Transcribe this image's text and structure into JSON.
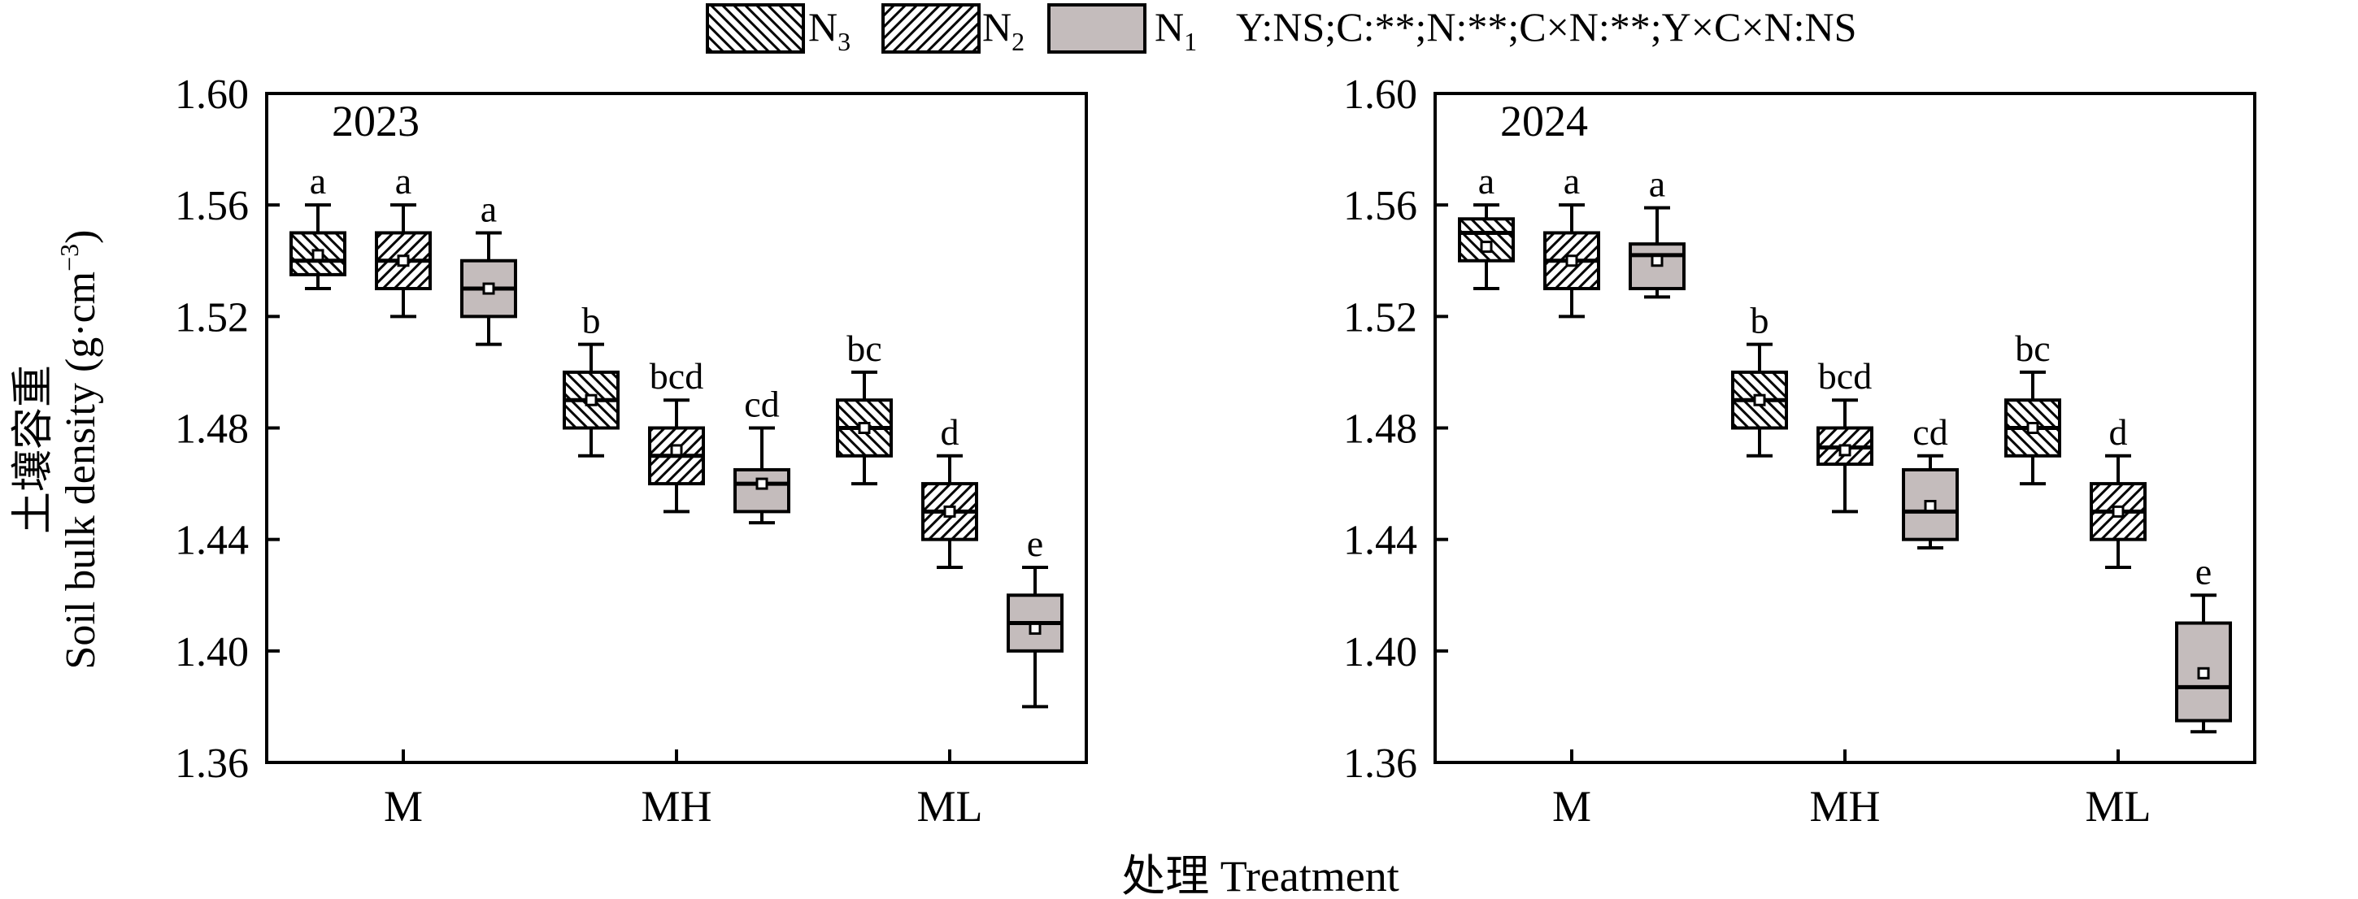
{
  "legend": {
    "entries": [
      {
        "key": "N3",
        "base": "N",
        "sub": "3",
        "pattern": "hatch-back"
      },
      {
        "key": "N2",
        "base": "N",
        "sub": "2",
        "pattern": "hatch-fwd"
      },
      {
        "key": "N1",
        "base": "N",
        "sub": "1",
        "pattern": "gray"
      }
    ],
    "stats_text": "Y:NS;C:**;N:**;C×N:**;Y×C×N:NS"
  },
  "axes": {
    "ylabel_cn": "土壤容重",
    "ylabel_en": "Soil bulk density",
    "ylabel_unit_open": "(g·cm",
    "ylabel_unit_sup": "−3",
    "ylabel_unit_close": ")",
    "xlabel": "处理 Treatment"
  },
  "colors": {
    "n1_fill": "#c4bcbc",
    "box_stroke": "#000000",
    "background": "#ffffff"
  },
  "chart_data": [
    {
      "type": "box",
      "title": "2023",
      "categories": [
        "M",
        "MH",
        "ML"
      ],
      "ylim": [
        1.36,
        1.6
      ],
      "yticks": [
        "1.36",
        "1.40",
        "1.44",
        "1.48",
        "1.52",
        "1.56",
        "1.60"
      ],
      "groups": [
        {
          "category": "M",
          "boxes": [
            {
              "series": "N3",
              "min": 1.53,
              "q1": 1.535,
              "median": 1.54,
              "q3": 1.55,
              "max": 1.56,
              "mean": 1.542,
              "label": "a"
            },
            {
              "series": "N2",
              "min": 1.52,
              "q1": 1.53,
              "median": 1.54,
              "q3": 1.55,
              "max": 1.56,
              "mean": 1.54,
              "label": "a"
            },
            {
              "series": "N1",
              "min": 1.51,
              "q1": 1.52,
              "median": 1.53,
              "q3": 1.54,
              "max": 1.55,
              "mean": 1.53,
              "label": "a"
            }
          ]
        },
        {
          "category": "MH",
          "boxes": [
            {
              "series": "N3",
              "min": 1.47,
              "q1": 1.48,
              "median": 1.49,
              "q3": 1.5,
              "max": 1.51,
              "mean": 1.49,
              "label": "b"
            },
            {
              "series": "N2",
              "min": 1.45,
              "q1": 1.46,
              "median": 1.47,
              "q3": 1.48,
              "max": 1.49,
              "mean": 1.472,
              "label": "bcd"
            },
            {
              "series": "N1",
              "min": 1.446,
              "q1": 1.45,
              "median": 1.46,
              "q3": 1.465,
              "max": 1.48,
              "mean": 1.46,
              "label": "cd"
            }
          ]
        },
        {
          "category": "ML",
          "boxes": [
            {
              "series": "N3",
              "min": 1.46,
              "q1": 1.47,
              "median": 1.48,
              "q3": 1.49,
              "max": 1.5,
              "mean": 1.48,
              "label": "bc"
            },
            {
              "series": "N2",
              "min": 1.43,
              "q1": 1.44,
              "median": 1.45,
              "q3": 1.46,
              "max": 1.47,
              "mean": 1.45,
              "label": "d"
            },
            {
              "series": "N1",
              "min": 1.38,
              "q1": 1.4,
              "median": 1.41,
              "q3": 1.42,
              "max": 1.43,
              "mean": 1.408,
              "label": "e"
            }
          ]
        }
      ]
    },
    {
      "type": "box",
      "title": "2024",
      "categories": [
        "M",
        "MH",
        "ML"
      ],
      "ylim": [
        1.36,
        1.6
      ],
      "yticks": [
        "1.36",
        "1.40",
        "1.44",
        "1.48",
        "1.52",
        "1.56",
        "1.60"
      ],
      "groups": [
        {
          "category": "M",
          "boxes": [
            {
              "series": "N3",
              "min": 1.53,
              "q1": 1.54,
              "median": 1.55,
              "q3": 1.555,
              "max": 1.56,
              "mean": 1.545,
              "label": "a"
            },
            {
              "series": "N2",
              "min": 1.52,
              "q1": 1.53,
              "median": 1.54,
              "q3": 1.55,
              "max": 1.56,
              "mean": 1.54,
              "label": "a"
            },
            {
              "series": "N1",
              "min": 1.527,
              "q1": 1.53,
              "median": 1.542,
              "q3": 1.546,
              "max": 1.559,
              "mean": 1.54,
              "label": "a"
            }
          ]
        },
        {
          "category": "MH",
          "boxes": [
            {
              "series": "N3",
              "min": 1.47,
              "q1": 1.48,
              "median": 1.49,
              "q3": 1.5,
              "max": 1.51,
              "mean": 1.49,
              "label": "b"
            },
            {
              "series": "N2",
              "min": 1.45,
              "q1": 1.467,
              "median": 1.473,
              "q3": 1.48,
              "max": 1.49,
              "mean": 1.472,
              "label": "bcd"
            },
            {
              "series": "N1",
              "min": 1.437,
              "q1": 1.44,
              "median": 1.45,
              "q3": 1.465,
              "max": 1.47,
              "mean": 1.452,
              "label": "cd"
            }
          ]
        },
        {
          "category": "ML",
          "boxes": [
            {
              "series": "N3",
              "min": 1.46,
              "q1": 1.47,
              "median": 1.48,
              "q3": 1.49,
              "max": 1.5,
              "mean": 1.48,
              "label": "bc"
            },
            {
              "series": "N2",
              "min": 1.43,
              "q1": 1.44,
              "median": 1.45,
              "q3": 1.46,
              "max": 1.47,
              "mean": 1.45,
              "label": "d"
            },
            {
              "series": "N1",
              "min": 1.371,
              "q1": 1.375,
              "median": 1.387,
              "q3": 1.41,
              "max": 1.42,
              "mean": 1.392,
              "label": "e"
            }
          ]
        }
      ]
    }
  ]
}
